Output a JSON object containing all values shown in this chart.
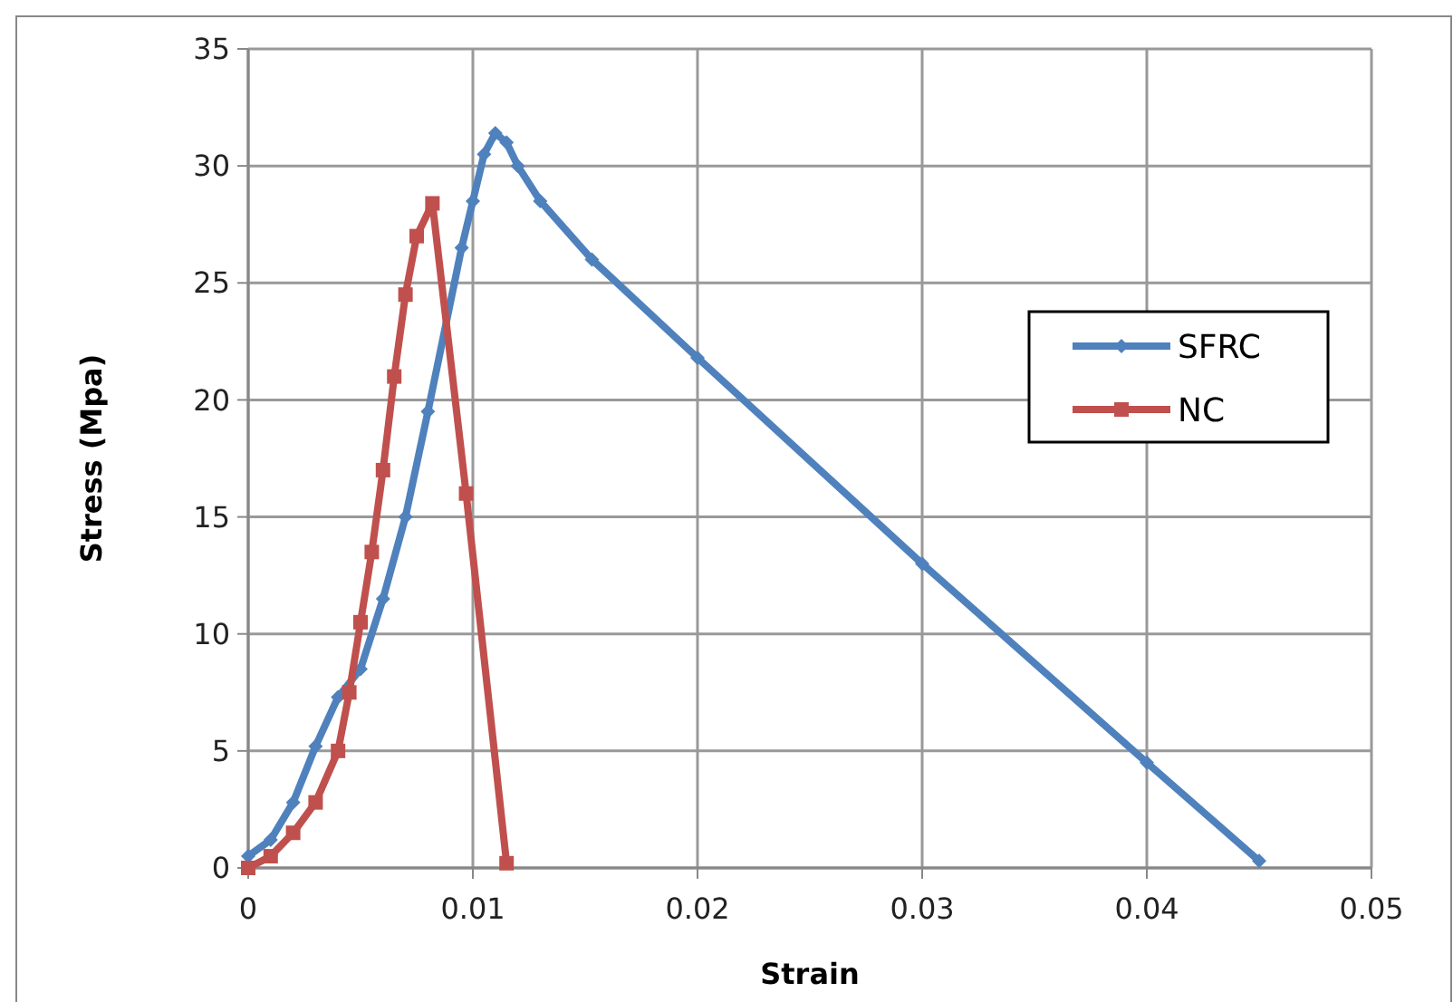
{
  "chart_data": {
    "type": "line",
    "xlabel": "Strain",
    "ylabel": "Stress (Mpa)",
    "xlim": [
      0,
      0.05
    ],
    "xticks": [
      0,
      0.01,
      0.02,
      0.03,
      0.04,
      0.05
    ],
    "ylim": [
      0,
      35
    ],
    "yticks": [
      0,
      5,
      10,
      15,
      20,
      25,
      30,
      35
    ],
    "grid": true,
    "legend": "right",
    "series": [
      {
        "name": "SFRC",
        "color": "#4f81bd",
        "marker": "diamond",
        "x": [
          0,
          0.001,
          0.002,
          0.003,
          0.004,
          0.005,
          0.006,
          0.007,
          0.008,
          0.0095,
          0.01,
          0.0105,
          0.011,
          0.0115,
          0.012,
          0.013,
          0.0153,
          0.02,
          0.03,
          0.04,
          0.045
        ],
        "values": [
          0.5,
          1.2,
          2.8,
          5.2,
          7.3,
          8.5,
          11.5,
          15,
          19.5,
          26.5,
          28.5,
          30.5,
          31.4,
          31,
          30,
          28.5,
          26,
          21.8,
          13,
          4.5,
          0.3
        ]
      },
      {
        "name": "NC",
        "color": "#c0504d",
        "marker": "square",
        "x": [
          0,
          0.001,
          0.002,
          0.003,
          0.004,
          0.0045,
          0.005,
          0.0055,
          0.006,
          0.0065,
          0.007,
          0.0075,
          0.0082,
          0.0097,
          0.0115
        ],
        "values": [
          0,
          0.5,
          1.5,
          2.8,
          5,
          7.5,
          10.5,
          13.5,
          17,
          21,
          24.5,
          27,
          28.4,
          16,
          0.2
        ]
      }
    ]
  }
}
